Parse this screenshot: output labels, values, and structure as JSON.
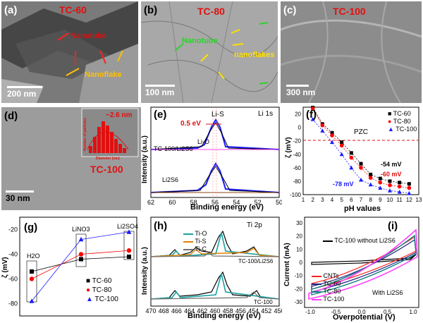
{
  "panels": {
    "a": {
      "label": "(a)",
      "title": "TC-60",
      "ann1": "Nanotube",
      "ann2": "Nanoflake",
      "scale": "200 nm"
    },
    "b": {
      "label": "(b)",
      "title": "TC-80",
      "ann1": "Nanotube",
      "ann2": "nanoflakes",
      "scale": "100 nm"
    },
    "c": {
      "label": "(c)",
      "title": "TC-100",
      "scale": "300 nm"
    },
    "d": {
      "label": "(d)",
      "title": "TC-100",
      "inset_text": "~2.6 nm",
      "inset_ylabel": "Number of particles",
      "inset_xlabel": "Diameter (nm)",
      "scale": "30 nm"
    },
    "e": {
      "label": "(e)",
      "tag": "Li 1s",
      "xlabel": "Binding energy (eV)",
      "ylabel": "Intensity (a.u.)",
      "ticks": [
        "62",
        "60",
        "58",
        "56",
        "54",
        "52",
        "50"
      ],
      "peak1": "Li-S",
      "peak2": "Li-O",
      "shift": "0.5 eV",
      "trace1": "TC-100/Li2S6",
      "trace2": "Li2S6"
    },
    "f": {
      "label": "(f)",
      "xlabel": "pH values",
      "ylabel": "ζ (mV)",
      "pzc": "PZC",
      "yticks": [
        "20",
        "0",
        "-20",
        "-40",
        "-60",
        "-80",
        "-100"
      ],
      "xticks": [
        "1",
        "2",
        "3",
        "4",
        "5",
        "6",
        "7",
        "8",
        "9",
        "10",
        "11",
        "12",
        "13"
      ],
      "ann": [
        "-54 mV",
        "-60 mV",
        "-78 mV"
      ]
    },
    "g": {
      "label": "(g)",
      "ylabel": "ζ (mV)",
      "yticks": [
        "-20",
        "-40",
        "-60",
        "-80"
      ],
      "cats": [
        "H2O",
        "LiNO3",
        "Li2SO4"
      ]
    },
    "h": {
      "label": "(h)",
      "tag": "Ti 2p",
      "xlabel": "Binding energy (eV)",
      "ylabel": "Intensity (a.u.)",
      "ticks": [
        "470",
        "468",
        "466",
        "464",
        "462",
        "460",
        "458",
        "456",
        "454",
        "452",
        "450"
      ],
      "trace1": "TC-100/Li2S6",
      "trace2": "TC-100"
    },
    "i": {
      "label": "(i)",
      "xlabel": "Overpotential (V)",
      "ylabel": "Current (mA)",
      "yticks": [
        "30",
        "20",
        "10",
        "0",
        "-10",
        "-20",
        "-30"
      ],
      "xticks": [
        "-1.0",
        "-0.5",
        "0.0",
        "0.5",
        "1.0"
      ],
      "ann1": "TC-100 without Li2S6",
      "ann2": "With Li2S6"
    }
  },
  "legend_f": [
    "TC-60",
    "TC-80",
    "TC-100"
  ],
  "legend_g": [
    "TC-60",
    "TC-80",
    "TC-100"
  ],
  "legend_h": [
    "Ti-O",
    "Ti-S",
    "Ti-C"
  ],
  "legend_i": [
    "CNTs",
    "TC-60",
    "TC-80",
    "TC-100"
  ],
  "colors": {
    "tc60": "#000000",
    "tc80": "#ff0000",
    "tc100": "#1a1aff",
    "tio": "#1aa0a0",
    "tis": "#e08000",
    "tic": "#707070",
    "cnts": "#ff2020",
    "i60": "#202080",
    "i80": "#108080",
    "i100": "#ff40ff"
  },
  "chart_data": [
    {
      "type": "scatter",
      "panel": "f",
      "xlabel": "pH values",
      "ylabel": "ζ (mV)",
      "xlim": [
        1,
        13
      ],
      "ylim": [
        -100,
        30
      ],
      "series": [
        {
          "name": "TC-60",
          "x": [
            2,
            3,
            4,
            5,
            6,
            7,
            8,
            9,
            10,
            11,
            12
          ],
          "values": [
            30,
            5,
            -8,
            -22,
            -38,
            -54,
            -70,
            -76,
            -80,
            -82,
            -84
          ]
        },
        {
          "name": "TC-80",
          "x": [
            2,
            3,
            4,
            5,
            6,
            7,
            8,
            9,
            10,
            11,
            12
          ],
          "values": [
            28,
            3,
            -12,
            -27,
            -45,
            -60,
            -75,
            -82,
            -86,
            -88,
            -90
          ]
        },
        {
          "name": "TC-100",
          "x": [
            2,
            3,
            4,
            5,
            6,
            7,
            8,
            9,
            10,
            11,
            12
          ],
          "values": [
            12,
            -5,
            -22,
            -40,
            -60,
            -78,
            -85,
            -90,
            -94,
            -96,
            -98
          ]
        }
      ]
    },
    {
      "type": "line",
      "panel": "g",
      "categories": [
        "H2O",
        "LiNO3",
        "Li2SO4"
      ],
      "ylabel": "ζ (mV)",
      "ylim": [
        -90,
        -10
      ],
      "series": [
        {
          "name": "TC-60",
          "values": [
            -54,
            -44,
            -42
          ]
        },
        {
          "name": "TC-80",
          "values": [
            -60,
            -40,
            -37
          ]
        },
        {
          "name": "TC-100",
          "values": [
            -78,
            -28,
            -22
          ]
        }
      ]
    }
  ]
}
